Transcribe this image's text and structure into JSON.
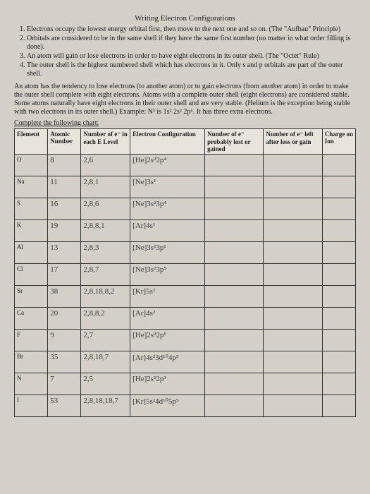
{
  "title": "Writing Electron Configurations",
  "rules": [
    "Electrons occupy the lowest energy orbital first, then move to the next one and so on. (The \"Aufbau\" Principle)",
    "Orbitals are considered to be in the same shell if they have the same first number (no matter in what order filling is done).",
    "An atom will gain or lose electrons in order to have eight electrons in its outer shell. (The \"Octet\" Rule)",
    "The outer shell is the highest numbered shell which has electrons in it. Only s and p orbitals are part of the outer shell."
  ],
  "paragraph": "An atom has the tendency to lose electrons (to another atom) or to gain electrons (from another atom) in order to make the outer shell complete with eight electrons. Atoms with a complete outer shell (eight electrons) are considered stable. Some atoms naturally have eight electrons in their outer shell and are very stable. (Helium is the exception being stable with two electrons in its outer shell.) Example: N³ is 1s² 2s² 2p⁶. It has three extra electrons.",
  "complete": "Complete the following chart:",
  "headers": {
    "element": "Element",
    "atomic": "Atomic Number",
    "numlevel": "Number of e⁻ in each E Level",
    "config": "Electron Configuration",
    "lost": "Number of e⁻ probably lost or gained",
    "left": "Number of e⁻ left after loss or gain",
    "charge": "Charge on Ion"
  },
  "rows": [
    {
      "elem": "O",
      "atomic": "8",
      "numlevel": "2,6",
      "config": "[He]2s²2p⁴",
      "lost": "",
      "left": "",
      "charge": ""
    },
    {
      "elem": "Na",
      "atomic": "11",
      "numlevel": "2,8,1",
      "config": "[Ne]3s¹",
      "lost": "",
      "left": "",
      "charge": ""
    },
    {
      "elem": "S",
      "atomic": "16",
      "numlevel": "2,8,6",
      "config": "[Ne]3s²3p⁴",
      "lost": "",
      "left": "",
      "charge": ""
    },
    {
      "elem": "K",
      "atomic": "19",
      "numlevel": "2,8,8,1",
      "config": "[Ar]4s¹",
      "lost": "",
      "left": "",
      "charge": ""
    },
    {
      "elem": "Al",
      "atomic": "13",
      "numlevel": "2,8,3",
      "config": "[Ne]3s²3p¹",
      "lost": "",
      "left": "",
      "charge": ""
    },
    {
      "elem": "Cl",
      "atomic": "17",
      "numlevel": "2,8,7",
      "config": "[Ne]3s²3p⁵",
      "lost": "",
      "left": "",
      "charge": ""
    },
    {
      "elem": "Sr",
      "atomic": "38",
      "numlevel": "2,8,18,8,2",
      "config": "[Kr]5s²",
      "lost": "",
      "left": "",
      "charge": ""
    },
    {
      "elem": "Ca",
      "atomic": "20",
      "numlevel": "2,8,8,2",
      "config": "[Ar]4s²",
      "lost": "",
      "left": "",
      "charge": ""
    },
    {
      "elem": "F",
      "atomic": "9",
      "numlevel": "2,7",
      "config": "[He]2s²2p⁵",
      "lost": "",
      "left": "",
      "charge": ""
    },
    {
      "elem": "Br",
      "atomic": "35",
      "numlevel": "2,8,18,7",
      "config": "[Ar]4s²3d¹⁰4p⁵",
      "lost": "",
      "left": "",
      "charge": ""
    },
    {
      "elem": "N",
      "atomic": "7",
      "numlevel": "2,5",
      "config": "[He]2s²2p³",
      "lost": "",
      "left": "",
      "charge": ""
    },
    {
      "elem": "I",
      "atomic": "53",
      "numlevel": "2,8,18,18,7",
      "config": "[Kr]5s²4d¹⁰5p⁵",
      "lost": "",
      "left": "",
      "charge": ""
    }
  ]
}
